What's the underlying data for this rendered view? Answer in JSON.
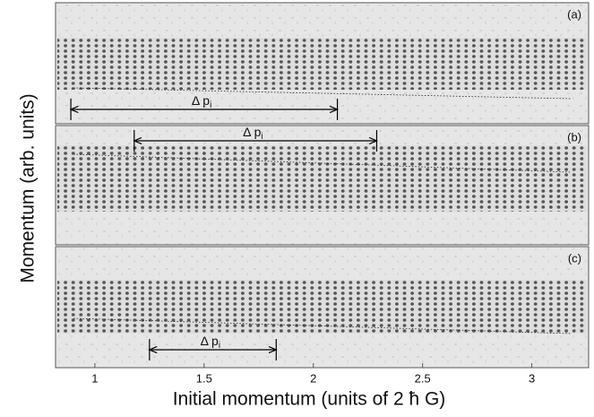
{
  "chart_data": {
    "type": "image-panels",
    "xlabel": "Initial momentum (units of 2 ħ G)",
    "ylabel": "Momentum (arb. units)",
    "xlim": [
      0.82,
      3.26
    ],
    "xticks": [
      1,
      1.5,
      2,
      2.5,
      3
    ],
    "panels": [
      {
        "label": "(a)",
        "annotation": "Δ p",
        "annotation_sub": "i",
        "span": [
          0.89,
          2.11
        ]
      },
      {
        "label": "(b)",
        "annotation": "Δ p",
        "annotation_sub": "i",
        "span": [
          1.18,
          2.29
        ]
      },
      {
        "label": "(c)",
        "annotation": "Δ p",
        "annotation_sub": "i",
        "span": [
          1.25,
          1.83
        ]
      }
    ]
  }
}
